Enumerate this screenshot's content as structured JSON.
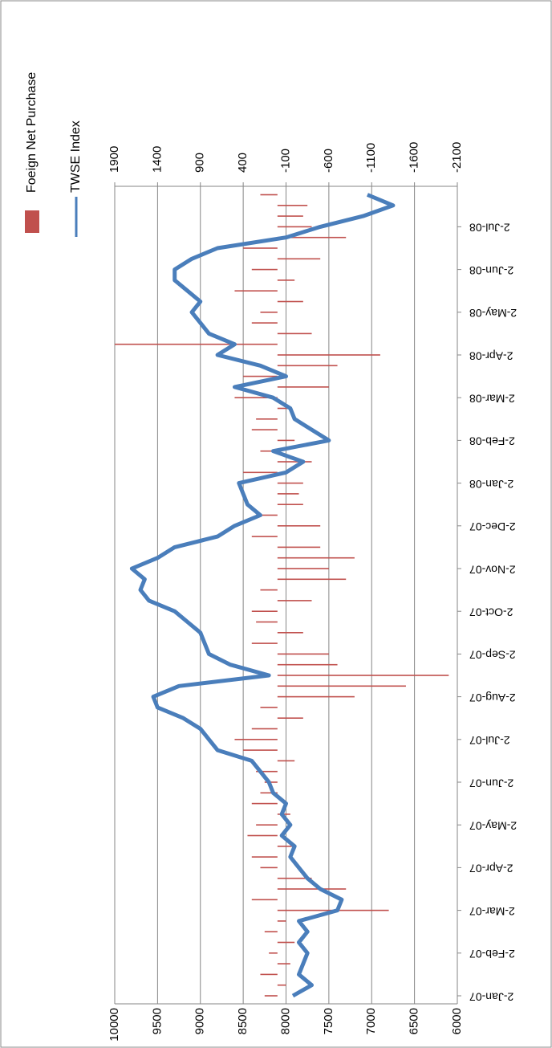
{
  "chart_data": {
    "type": "bar-line",
    "categories": [
      "2-Jan-07",
      null,
      null,
      null,
      "2-Feb-07",
      null,
      null,
      null,
      "2-Mar-07",
      null,
      null,
      null,
      "2-Apr-07",
      null,
      null,
      null,
      "2-May-07",
      null,
      null,
      null,
      "2-Jun-07",
      null,
      null,
      null,
      "2-Jul-07",
      null,
      null,
      null,
      "2-Aug-07",
      null,
      null,
      null,
      "2-Sep-07",
      null,
      null,
      null,
      "2-Oct-07",
      null,
      null,
      null,
      "2-Nov-07",
      null,
      null,
      null,
      "2-Dec-07",
      null,
      null,
      null,
      "2-Jan-08",
      null,
      null,
      null,
      "2-Feb-08",
      null,
      null,
      null,
      "2-Mar-08",
      null,
      null,
      null,
      "2-Apr-08",
      null,
      null,
      null,
      "2-May-08",
      null,
      null,
      null,
      "2-Jun-08",
      null,
      null,
      null,
      "2-Jul-08",
      null,
      null,
      null
    ],
    "series": [
      {
        "name": "Foeign Net Purchase",
        "color": "#c0504d",
        "kind": "bar",
        "axis": "y2",
        "values": [
          150,
          -100,
          200,
          -150,
          100,
          -200,
          150,
          -100,
          -1300,
          300,
          -800,
          -400,
          200,
          300,
          -200,
          350,
          250,
          -150,
          300,
          200,
          150,
          250,
          -200,
          400,
          500,
          300,
          -300,
          200,
          -900,
          -1500,
          -2000,
          -700,
          -600,
          300,
          -300,
          250,
          300,
          -400,
          200,
          -800,
          -600,
          -900,
          -500,
          300,
          -500,
          250,
          -300,
          -250,
          -300,
          400,
          -400,
          200,
          -200,
          300,
          250,
          -150,
          500,
          -600,
          400,
          -700,
          -1200,
          1900,
          -400,
          300,
          200,
          -300,
          500,
          -200,
          300,
          -500,
          400,
          -800,
          -400,
          -300,
          -350,
          200
        ]
      },
      {
        "name": "TWSE Index",
        "color": "#4a7ebb",
        "kind": "line",
        "values": [
          7920,
          7700,
          7850,
          7800,
          7750,
          7850,
          7750,
          7850,
          7400,
          7350,
          7600,
          7750,
          7850,
          7950,
          7900,
          8050,
          7950,
          8050,
          8000,
          8150,
          8200,
          8300,
          8400,
          8800,
          8900,
          9000,
          9200,
          9500,
          9550,
          9250,
          8200,
          8650,
          8900,
          8950,
          9000,
          9150,
          9300,
          9600,
          9700,
          9650,
          9800,
          9500,
          9300,
          8800,
          8600,
          8300,
          8450,
          8500,
          8550,
          8000,
          7800,
          8150,
          7500,
          7700,
          7900,
          7950,
          8150,
          8600,
          8000,
          8300,
          8800,
          8600,
          8900,
          9000,
          9100,
          9000,
          9150,
          9300,
          9300,
          9100,
          8800,
          8000,
          7600,
          7100,
          6750,
          7050
        ]
      }
    ],
    "ylim": [
      6000,
      10000
    ],
    "yticks": [
      6000,
      6500,
      7000,
      7500,
      8000,
      8500,
      9000,
      9500,
      10000
    ],
    "y2lim": [
      -2100,
      1900
    ],
    "y2ticks": [
      -2100,
      -1600,
      -1100,
      -600,
      -100,
      400,
      900,
      1400,
      1900
    ],
    "grid": true,
    "legend": "top-right",
    "rotation": -90
  }
}
